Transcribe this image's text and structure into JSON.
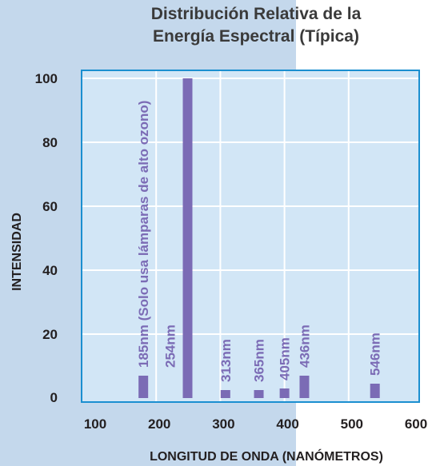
{
  "chart_data": {
    "type": "bar",
    "title_lines": [
      "Distribución Relativa de la",
      "Energía Espectral (Típica)"
    ],
    "xlabel": "LONGITUD DE ONDA (NANÓMETROS)",
    "ylabel": "INTENSIDAD",
    "xlim": [
      100,
      600
    ],
    "ylim": [
      0,
      100
    ],
    "xticks": [
      "100",
      "200",
      "300",
      "400",
      "500",
      "600"
    ],
    "yticks": [
      "0",
      "20",
      "40",
      "60",
      "80",
      "100"
    ],
    "grid": true,
    "bars": [
      {
        "x": 185,
        "value": 7,
        "label": "185nm (Solo usa lámparas de alto ozono)"
      },
      {
        "x": 254,
        "value": 100,
        "label": "254nm"
      },
      {
        "x": 313,
        "value": 2.5,
        "label": "313nm"
      },
      {
        "x": 365,
        "value": 2.5,
        "label": "365nm"
      },
      {
        "x": 405,
        "value": 3,
        "label": "405nm"
      },
      {
        "x": 436,
        "value": 7,
        "label": "436nm"
      },
      {
        "x": 546,
        "value": 4.5,
        "label": "546nm"
      }
    ],
    "colors": {
      "bar": "#7b6bb5",
      "plot_bg": "#d2e6f6",
      "frame": "#1b8fd0",
      "grid": "#ffffff",
      "page_bg": "#c4d8ec"
    }
  }
}
